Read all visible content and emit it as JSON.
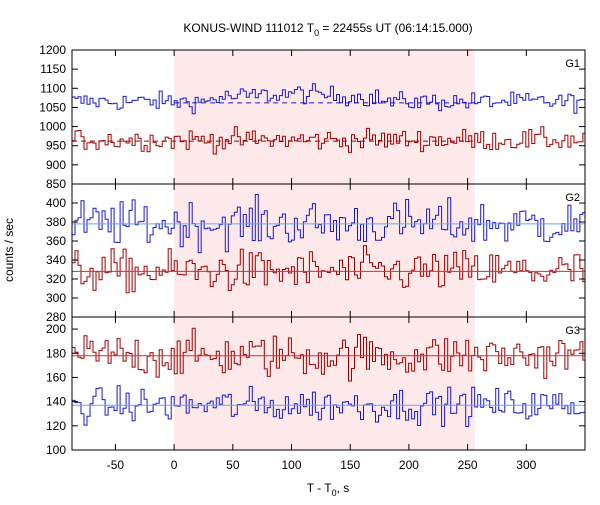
{
  "chart_data": {
    "type": "line",
    "title": {
      "prefix": "KONUS-WIND 111012 T",
      "sub": "0",
      "suffix": " = 22455s UT (06:14:15.000)"
    },
    "xlabel": {
      "prefix": "T - T",
      "sub": "0",
      "suffix": ", s"
    },
    "ylabel": "counts / sec",
    "xlim": [
      -87,
      350
    ],
    "xticks": [
      -50,
      0,
      50,
      100,
      150,
      200,
      250,
      300
    ],
    "highlight_interval": [
      0,
      256
    ],
    "colors": {
      "blue": "#1a1acc",
      "red": "#a00000",
      "red_fit": "#d03030",
      "background_fit": "#6aa8e8",
      "highlight": "#fde9ea"
    },
    "panels": [
      {
        "name": "G1",
        "ylim": [
          850,
          1200
        ],
        "yticks": [
          850,
          900,
          950,
          1000,
          1050,
          1100,
          1150,
          1200
        ],
        "series": [
          {
            "color": "blue",
            "level": 1065,
            "noise": 12,
            "bump": {
              "start": 30,
              "end": 175,
              "amp": 22
            },
            "fit": {
              "level": 1062,
              "from": 0,
              "to": 256,
              "style": "dashed"
            }
          },
          {
            "color": "red",
            "level": 965,
            "noise": 14,
            "fit": {
              "level": 962,
              "from": -87,
              "to": 256,
              "style": "dashed"
            }
          }
        ]
      },
      {
        "name": "G2",
        "ylim": [
          280,
          420
        ],
        "yticks": [
          280,
          300,
          320,
          340,
          360,
          380,
          400
        ],
        "series": [
          {
            "color": "blue",
            "level": 378,
            "noise": 12,
            "fit": {
              "level": 378,
              "from": -87,
              "to": 350,
              "style": "solid"
            }
          },
          {
            "color": "red",
            "level": 328,
            "noise": 11,
            "fit": {
              "level": 328,
              "from": -87,
              "to": 350,
              "style": "solid"
            }
          }
        ]
      },
      {
        "name": "G3",
        "ylim": [
          100,
          210
        ],
        "yticks": [
          100,
          120,
          140,
          160,
          180,
          200
        ],
        "series": [
          {
            "color": "red",
            "level": 178,
            "noise": 9,
            "fit": {
              "level": 178,
              "from": -87,
              "to": 350,
              "style": "solid"
            }
          },
          {
            "color": "blue",
            "level": 137,
            "noise": 7,
            "fit": {
              "level": 137,
              "from": -87,
              "to": 350,
              "style": "solid"
            }
          }
        ]
      }
    ]
  }
}
